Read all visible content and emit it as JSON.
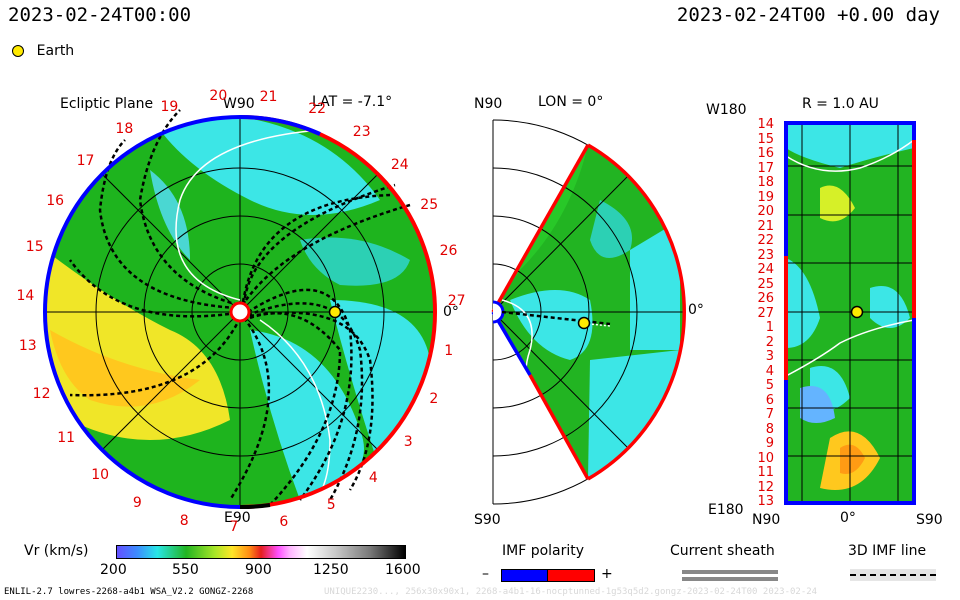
{
  "header": {
    "date_left": "2023-02-24T00:00",
    "date_right": "2023-02-24T00 +0.00 day",
    "legend_label": "Earth"
  },
  "panel_ecliptic": {
    "title": "Ecliptic Plane",
    "top_label": "W90",
    "bottom_label": "E90",
    "right_label": "0°",
    "lat_label": "LAT = -7.1°",
    "rotation_numbers": [
      "20",
      "21",
      "22",
      "23",
      "24",
      "25",
      "26",
      "27",
      "1",
      "2",
      "3",
      "4",
      "5",
      "6",
      "7",
      "8",
      "9",
      "10",
      "11",
      "12",
      "13",
      "14",
      "15",
      "16",
      "17",
      "18",
      "19"
    ]
  },
  "panel_meridional": {
    "top_left_label": "N90",
    "lon_label": "LON = 0°",
    "right_label": "0°",
    "bottom_label": "S90"
  },
  "panel_radius": {
    "top_left_label": "W180",
    "r_label": "R = 1.0 AU",
    "bottom_left_label": "E180",
    "x_labels": [
      "N90",
      "0°",
      "S90"
    ],
    "y_labels": [
      "14",
      "15",
      "16",
      "17",
      "18",
      "19",
      "20",
      "21",
      "22",
      "23",
      "24",
      "25",
      "26",
      "27",
      "1",
      "2",
      "3",
      "4",
      "5",
      "6",
      "7",
      "8",
      "9",
      "10",
      "11",
      "12",
      "13"
    ]
  },
  "colorbar": {
    "label": "Vr (km/s)",
    "ticks": [
      "200",
      "550",
      "900",
      "1250",
      "1600"
    ]
  },
  "imf_polarity": {
    "title": "IMF polarity",
    "minus": "–",
    "plus": "+",
    "colors": {
      "negative": "#0000ff",
      "positive": "#ff0000"
    }
  },
  "current_sheath": {
    "title": "Current sheath"
  },
  "imf_line": {
    "title": "3D IMF line"
  },
  "footer": {
    "left": "ENLIL-2.7 lowres-2268-a4b1 WSA_V2.2 GONGZ-2268",
    "right": "UNIQUE2230..., 256x30x90x1, 2268-a4b1-16-nocptunned-1g53q5d2.gongz-2023-02-24T00 2023-02-24"
  },
  "colors": {
    "slow_wind": "#19b419",
    "fast_wind": "#ffd21e",
    "cyan_region": "#28e6e6",
    "boundary_negative": "#0000ff",
    "boundary_positive": "#ff0000",
    "label_red": "#e00000"
  }
}
